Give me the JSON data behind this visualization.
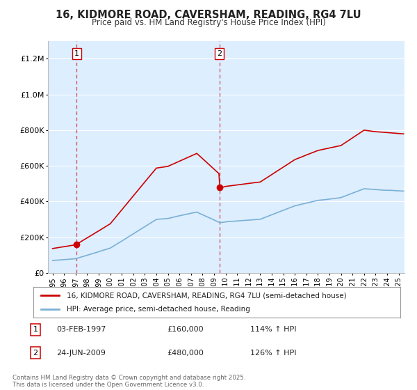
{
  "title": "16, KIDMORE ROAD, CAVERSHAM, READING, RG4 7LU",
  "subtitle": "Price paid vs. HM Land Registry's House Price Index (HPI)",
  "legend_entry1": "16, KIDMORE ROAD, CAVERSHAM, READING, RG4 7LU (semi-detached house)",
  "legend_entry2": "HPI: Average price, semi-detached house, Reading",
  "footer": "Contains HM Land Registry data © Crown copyright and database right 2025.\nThis data is licensed under the Open Government Licence v3.0.",
  "sale1_date": "03-FEB-1997",
  "sale1_price": 160000,
  "sale1_label": "114% ↑ HPI",
  "sale2_date": "24-JUN-2009",
  "sale2_price": 480000,
  "sale2_label": "126% ↑ HPI",
  "ylim": [
    0,
    1300000
  ],
  "xlim_start": 1994.6,
  "xlim_end": 2025.5,
  "red_color": "#cc0000",
  "blue_color": "#7ab0d4",
  "bg_plot": "#ddeeff",
  "bg_fig": "#ffffff",
  "sale1_year": 1997.083,
  "sale2_year": 2009.458
}
